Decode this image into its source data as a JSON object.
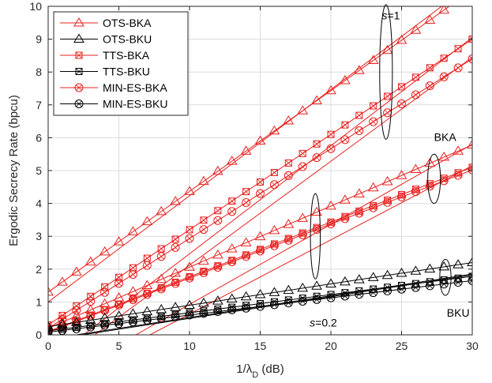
{
  "chart_data": {
    "type": "line",
    "xlabel": "1/λ_D (dB)",
    "ylabel": "Ergodic Secrecy Rate (bpcu)",
    "xlim": [
      0,
      30
    ],
    "ylim": [
      0,
      10
    ],
    "xticks": [
      0,
      5,
      10,
      15,
      20,
      25,
      30
    ],
    "yticks": [
      0,
      1,
      2,
      3,
      4,
      5,
      6,
      7,
      8,
      9,
      10
    ],
    "grid": true,
    "legend_position": "top-left",
    "annotations": [
      {
        "text_s": "s",
        "text_val": "=1",
        "x": 23.6,
        "y": 9.6
      },
      {
        "text": "BKA",
        "x": 27.3,
        "y": 5.9
      },
      {
        "text_s": "s",
        "text_val": "=0.2",
        "x": 18.5,
        "y": 0.25
      },
      {
        "text": "BKU",
        "x": 28.2,
        "y": 0.55
      }
    ],
    "ellipses": [
      {
        "cx": 23.9,
        "cy": 8.0,
        "rx": 0.45,
        "ry": 2.05
      },
      {
        "cx": 27.3,
        "cy": 4.75,
        "rx": 0.45,
        "ry": 0.75
      },
      {
        "cx": 18.9,
        "cy": 3.0,
        "rx": 0.35,
        "ry": 1.3
      },
      {
        "cx": 28.1,
        "cy": 1.75,
        "rx": 0.4,
        "ry": 0.55
      }
    ],
    "series": [
      {
        "name": "OTS-BKA",
        "color": "#e8201e",
        "marker": "triangle",
        "group": "s=1",
        "x": [
          0,
          30
        ],
        "y": [
          1.3,
          10.5
        ]
      },
      {
        "name": "TTS-BKA",
        "color": "#e8201e",
        "marker": "square",
        "group": "s=1",
        "x": [
          0,
          30
        ],
        "y": [
          0.3,
          9.0
        ]
      },
      {
        "name": "MIN-ES-BKA",
        "color": "#e8201e",
        "marker": "circle",
        "group": "s=1",
        "x": [
          0,
          30
        ],
        "y": [
          0.2,
          8.4
        ]
      },
      {
        "name": "OTS-BKA",
        "color": "#e8201e",
        "marker": "triangle",
        "group": "s=0.2",
        "x": [
          0,
          30
        ],
        "y": [
          0.2,
          5.78
        ]
      },
      {
        "name": "TTS-BKA",
        "color": "#e8201e",
        "marker": "square",
        "group": "s=0.2",
        "x": [
          0,
          30
        ],
        "y": [
          0.1,
          5.1
        ]
      },
      {
        "name": "MIN-ES-BKA",
        "color": "#e8201e",
        "marker": "circle",
        "group": "s=0.2",
        "x": [
          0,
          30
        ],
        "y": [
          0.08,
          5.02
        ]
      },
      {
        "name": "OTS-BKU",
        "color": "#000000",
        "marker": "triangle",
        "x": [
          0,
          30
        ],
        "y": [
          0.25,
          2.2
        ]
      },
      {
        "name": "TTS-BKU",
        "color": "#000000",
        "marker": "square",
        "x": [
          0,
          30
        ],
        "y": [
          0.12,
          1.78
        ]
      },
      {
        "name": "MIN-ES-BKU",
        "color": "#000000",
        "marker": "circle",
        "x": [
          0,
          30
        ],
        "y": [
          0.08,
          1.65
        ]
      }
    ],
    "asymptotes": [
      {
        "color": "#e8201e",
        "x": [
          0,
          30
        ],
        "y": [
          1.0,
          10.7
        ]
      },
      {
        "color": "#e8201e",
        "x": [
          2.5,
          30
        ],
        "y": [
          0.0,
          9.05
        ]
      },
      {
        "color": "#e8201e",
        "x": [
          3.3,
          30
        ],
        "y": [
          0.0,
          8.45
        ]
      },
      {
        "color": "#e8201e",
        "x": [
          6.2,
          30
        ],
        "y": [
          0.0,
          5.8
        ]
      },
      {
        "color": "#e8201e",
        "x": [
          7.2,
          30
        ],
        "y": [
          0.0,
          5.15
        ]
      },
      {
        "color": "#000000",
        "x": [
          2.0,
          30
        ],
        "y": [
          0.0,
          1.85
        ]
      },
      {
        "color": "#000000",
        "x": [
          2.4,
          30
        ],
        "y": [
          0.0,
          1.82
        ]
      }
    ],
    "legend": [
      "OTS-BKA",
      "OTS-BKU",
      "TTS-BKA",
      "TTS-BKU",
      "MIN-ES-BKA",
      "MIN-ES-BKU"
    ],
    "legend_style": [
      {
        "color": "#e8201e",
        "marker": "triangle"
      },
      {
        "color": "#000000",
        "marker": "triangle"
      },
      {
        "color": "#e8201e",
        "marker": "square"
      },
      {
        "color": "#000000",
        "marker": "square"
      },
      {
        "color": "#e8201e",
        "marker": "circle"
      },
      {
        "color": "#000000",
        "marker": "circle"
      }
    ]
  }
}
